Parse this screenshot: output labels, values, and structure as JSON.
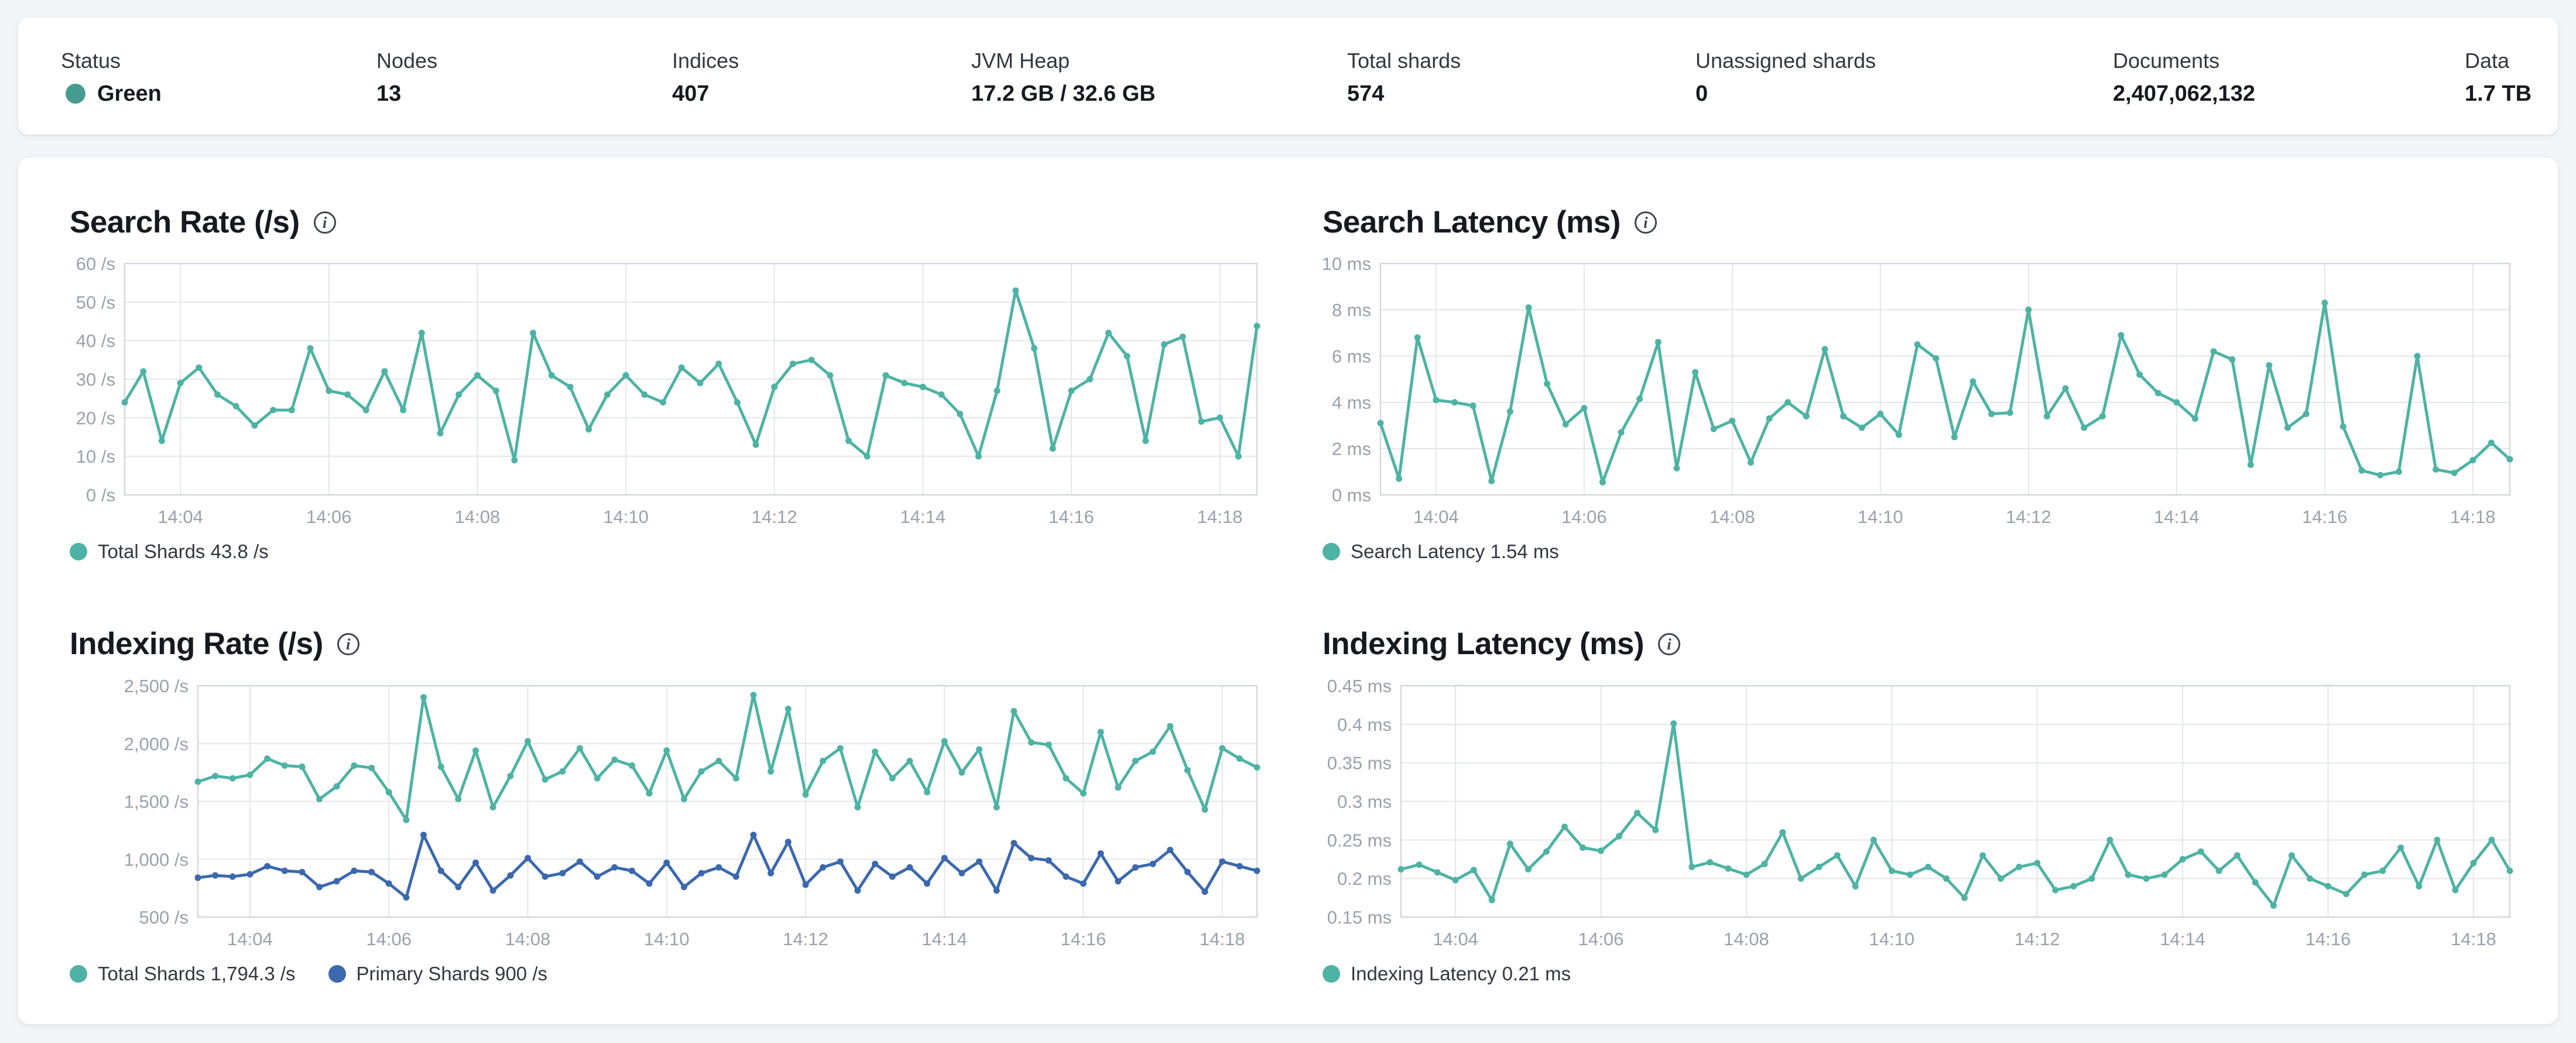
{
  "icons": {
    "info_glyph": "i"
  },
  "colors": {
    "teal_line": "#4EB3A4",
    "blue_line": "#3B68AE",
    "status_green_dot": "#469B8F",
    "grid": "#e3e6eb",
    "plot_border": "#d3d7de",
    "tick_text": "#9aa1ac"
  },
  "metrics": [
    {
      "label": "Status",
      "value": "Green",
      "has_dot": true
    },
    {
      "label": "Nodes",
      "value": "13"
    },
    {
      "label": "Indices",
      "value": "407"
    },
    {
      "label": "JVM Heap",
      "value": "17.2 GB / 32.6 GB"
    },
    {
      "label": "Total shards",
      "value": "574"
    },
    {
      "label": "Unassigned shards",
      "value": "0"
    },
    {
      "label": "Documents",
      "value": "2,407,062,132"
    },
    {
      "label": "Data",
      "value": "1.7 TB"
    }
  ],
  "chart_data": [
    {
      "type": "line",
      "title": "Search Rate (/s)",
      "ylabel": "/s",
      "y_min": 0,
      "y_max": 60,
      "y_ticks": [
        {
          "v": 0,
          "label": "0 /s"
        },
        {
          "v": 10,
          "label": "10 /s"
        },
        {
          "v": 20,
          "label": "20 /s"
        },
        {
          "v": 30,
          "label": "30 /s"
        },
        {
          "v": 40,
          "label": "40 /s"
        },
        {
          "v": 50,
          "label": "50 /s"
        },
        {
          "v": 60,
          "label": "60 /s"
        }
      ],
      "x_ticks": [
        {
          "min": 4,
          "label": "14:04"
        },
        {
          "min": 6,
          "label": "14:06"
        },
        {
          "min": 8,
          "label": "14:08"
        },
        {
          "min": 10,
          "label": "14:10"
        },
        {
          "min": 12,
          "label": "14:12"
        },
        {
          "min": 14,
          "label": "14:14"
        },
        {
          "min": 16,
          "label": "14:16"
        },
        {
          "min": 18,
          "label": "14:18"
        }
      ],
      "t_start_min": 3.25,
      "t_step_min": 0.25,
      "margin_left": 125,
      "series": [
        {
          "name": "Total Shards",
          "color": "#4EB3A4",
          "values": [
            24,
            32,
            14,
            29,
            33,
            26,
            23,
            18,
            22,
            22,
            38,
            27,
            26,
            22,
            32,
            22,
            42,
            16,
            26,
            31,
            27,
            9,
            42,
            31,
            28,
            17,
            26,
            31,
            26,
            24,
            33,
            29,
            34,
            24,
            13,
            28,
            34,
            35,
            31,
            14,
            10,
            31,
            29,
            28,
            26,
            21,
            10,
            27,
            53,
            38,
            12,
            27,
            30,
            42,
            36,
            14,
            39,
            41,
            19,
            20,
            10,
            43.8
          ]
        }
      ],
      "legend": [
        {
          "text": "Total Shards 43.8 /s",
          "color": "#4EB3A4"
        }
      ]
    },
    {
      "type": "line",
      "title": "Search Latency (ms)",
      "ylabel": "ms",
      "y_min": 0,
      "y_max": 10,
      "y_ticks": [
        {
          "v": 0,
          "label": "0 ms"
        },
        {
          "v": 2,
          "label": "2 ms"
        },
        {
          "v": 4,
          "label": "4 ms"
        },
        {
          "v": 6,
          "label": "6 ms"
        },
        {
          "v": 8,
          "label": "8 ms"
        },
        {
          "v": 10,
          "label": "10 ms"
        }
      ],
      "x_ticks": [
        {
          "min": 4,
          "label": "14:04"
        },
        {
          "min": 6,
          "label": "14:06"
        },
        {
          "min": 8,
          "label": "14:08"
        },
        {
          "min": 10,
          "label": "14:10"
        },
        {
          "min": 12,
          "label": "14:12"
        },
        {
          "min": 14,
          "label": "14:14"
        },
        {
          "min": 16,
          "label": "14:16"
        },
        {
          "min": 18,
          "label": "14:18"
        }
      ],
      "t_start_min": 3.25,
      "t_step_min": 0.25,
      "margin_left": 130,
      "series": [
        {
          "name": "Search Latency",
          "color": "#4EB3A4",
          "values": [
            3.1,
            0.7,
            6.8,
            4.1,
            4.0,
            3.85,
            0.6,
            3.6,
            8.1,
            4.8,
            3.05,
            3.75,
            0.55,
            2.7,
            4.15,
            6.6,
            1.15,
            5.3,
            2.85,
            3.2,
            1.4,
            3.3,
            4.0,
            3.4,
            6.3,
            3.4,
            2.9,
            3.5,
            2.6,
            6.5,
            5.9,
            2.5,
            4.9,
            3.5,
            3.55,
            8.0,
            3.4,
            4.6,
            2.9,
            3.4,
            6.9,
            5.2,
            4.4,
            4.0,
            3.3,
            6.2,
            5.85,
            1.3,
            5.6,
            2.9,
            3.5,
            8.3,
            2.95,
            1.05,
            0.85,
            1.0,
            6.0,
            1.1,
            0.95,
            1.5,
            2.25,
            1.54
          ]
        }
      ],
      "legend": [
        {
          "text": "Search Latency 1.54 ms",
          "color": "#4EB3A4"
        }
      ]
    },
    {
      "type": "line",
      "title": "Indexing Rate (/s)",
      "ylabel": "/s",
      "y_min": 500,
      "y_max": 2500,
      "y_ticks": [
        {
          "v": 500,
          "label": "500 /s"
        },
        {
          "v": 1000,
          "label": "1,000 /s"
        },
        {
          "v": 1500,
          "label": "1,500 /s"
        },
        {
          "v": 2000,
          "label": "2,000 /s"
        },
        {
          "v": 2500,
          "label": "2,500 /s"
        }
      ],
      "x_ticks": [
        {
          "min": 4,
          "label": "14:04"
        },
        {
          "min": 6,
          "label": "14:06"
        },
        {
          "min": 8,
          "label": "14:08"
        },
        {
          "min": 10,
          "label": "14:10"
        },
        {
          "min": 12,
          "label": "14:12"
        },
        {
          "min": 14,
          "label": "14:14"
        },
        {
          "min": 16,
          "label": "14:16"
        },
        {
          "min": 18,
          "label": "14:18"
        }
      ],
      "t_start_min": 3.25,
      "t_step_min": 0.25,
      "margin_left": 250,
      "series": [
        {
          "name": "Total Shards",
          "color": "#4EB3A4",
          "values": [
            1670,
            1720,
            1700,
            1730,
            1870,
            1810,
            1800,
            1520,
            1630,
            1810,
            1790,
            1580,
            1340,
            2400,
            1800,
            1520,
            1940,
            1450,
            1720,
            2020,
            1690,
            1760,
            1960,
            1700,
            1860,
            1810,
            1570,
            1940,
            1520,
            1760,
            1850,
            1700,
            2420,
            1760,
            2300,
            1560,
            1850,
            1960,
            1450,
            1930,
            1700,
            1850,
            1580,
            2020,
            1750,
            1950,
            1450,
            2280,
            2010,
            1990,
            1700,
            1570,
            2100,
            1620,
            1850,
            1930,
            2150,
            1770,
            1430,
            1960,
            1870,
            1794.3
          ]
        },
        {
          "name": "Primary Shards",
          "color": "#3B68AE",
          "values": [
            840,
            860,
            850,
            870,
            940,
            900,
            890,
            760,
            810,
            900,
            890,
            790,
            670,
            1210,
            900,
            760,
            970,
            730,
            860,
            1010,
            850,
            880,
            980,
            850,
            930,
            900,
            790,
            970,
            760,
            880,
            930,
            850,
            1210,
            880,
            1150,
            780,
            930,
            980,
            730,
            960,
            850,
            930,
            790,
            1010,
            880,
            980,
            730,
            1140,
            1010,
            990,
            850,
            790,
            1050,
            810,
            930,
            960,
            1080,
            890,
            720,
            980,
            940,
            900
          ]
        }
      ],
      "legend": [
        {
          "text": "Total Shards 1,794.3 /s",
          "color": "#4EB3A4"
        },
        {
          "text": "Primary Shards 900 /s",
          "color": "#3B68AE"
        }
      ]
    },
    {
      "type": "line",
      "title": "Indexing Latency (ms)",
      "ylabel": "ms",
      "y_min": 0.15,
      "y_max": 0.45,
      "y_ticks": [
        {
          "v": 0.15,
          "label": "0.15 ms"
        },
        {
          "v": 0.2,
          "label": "0.2 ms"
        },
        {
          "v": 0.25,
          "label": "0.25 ms"
        },
        {
          "v": 0.3,
          "label": "0.3 ms"
        },
        {
          "v": 0.35,
          "label": "0.35 ms"
        },
        {
          "v": 0.4,
          "label": "0.4 ms"
        },
        {
          "v": 0.45,
          "label": "0.45 ms"
        }
      ],
      "x_ticks": [
        {
          "min": 4,
          "label": "14:04"
        },
        {
          "min": 6,
          "label": "14:06"
        },
        {
          "min": 8,
          "label": "14:08"
        },
        {
          "min": 10,
          "label": "14:10"
        },
        {
          "min": 12,
          "label": "14:12"
        },
        {
          "min": 14,
          "label": "14:14"
        },
        {
          "min": 16,
          "label": "14:16"
        },
        {
          "min": 18,
          "label": "14:18"
        }
      ],
      "t_start_min": 3.25,
      "t_step_min": 0.25,
      "margin_left": 165,
      "series": [
        {
          "name": "Indexing Latency",
          "color": "#4EB3A4",
          "values": [
            0.212,
            0.218,
            0.208,
            0.198,
            0.211,
            0.172,
            0.245,
            0.212,
            0.235,
            0.267,
            0.24,
            0.236,
            0.255,
            0.285,
            0.263,
            0.401,
            0.215,
            0.221,
            0.213,
            0.205,
            0.219,
            0.26,
            0.2,
            0.215,
            0.23,
            0.19,
            0.25,
            0.21,
            0.205,
            0.215,
            0.2,
            0.175,
            0.23,
            0.2,
            0.215,
            0.22,
            0.185,
            0.19,
            0.2,
            0.25,
            0.205,
            0.2,
            0.205,
            0.225,
            0.235,
            0.21,
            0.23,
            0.195,
            0.165,
            0.23,
            0.2,
            0.19,
            0.18,
            0.205,
            0.21,
            0.24,
            0.19,
            0.25,
            0.185,
            0.22,
            0.25,
            0.21
          ]
        }
      ],
      "legend": [
        {
          "text": "Indexing Latency 0.21 ms",
          "color": "#4EB3A4"
        }
      ]
    }
  ]
}
